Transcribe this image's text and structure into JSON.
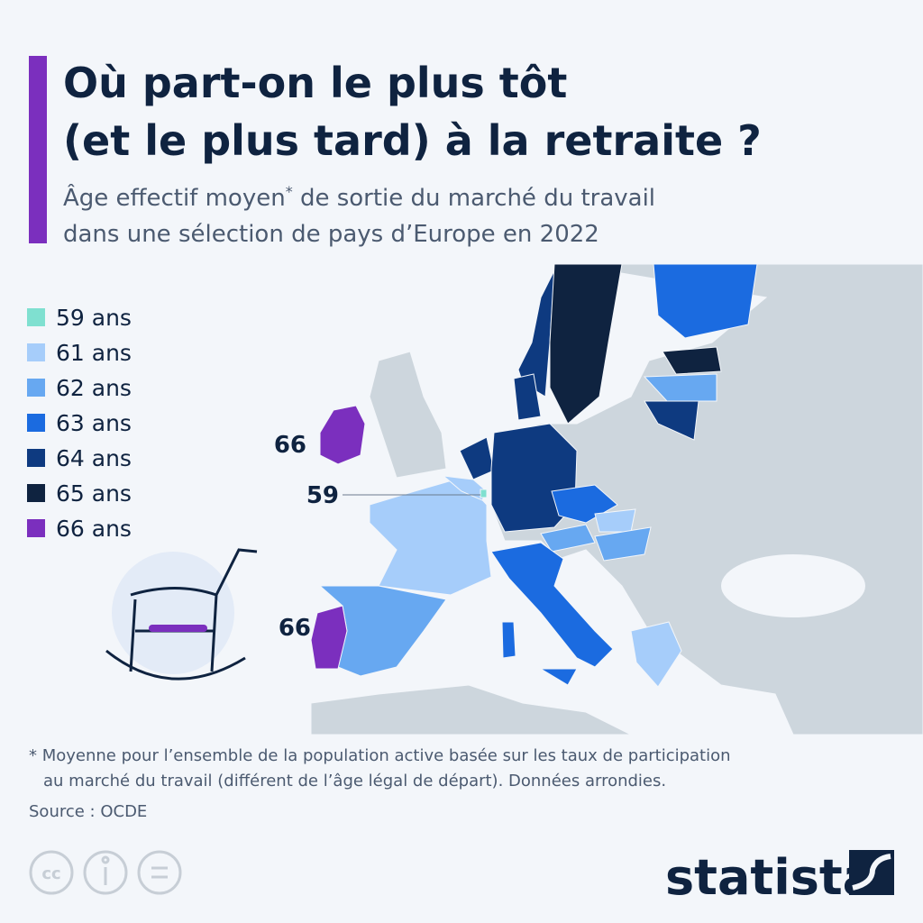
{
  "header": {
    "title": [
      "Où part-on le plus tôt",
      "(et le plus tard) à la retraite ?"
    ],
    "subtitle": [
      "Âge effectif moyen",
      "*",
      " de sortie du marché du travail",
      "dans une sélection de pays d’Europe en 2022"
    ]
  },
  "legend": {
    "items": [
      {
        "label": "59 ans",
        "color": "#7fe0d0"
      },
      {
        "label": "61 ans",
        "color": "#a6cdfa"
      },
      {
        "label": "62 ans",
        "color": "#67a8f1"
      },
      {
        "label": "63 ans",
        "color": "#1b6be0"
      },
      {
        "label": "64 ans",
        "color": "#0e3a80"
      },
      {
        "label": "65 ans",
        "color": "#0f2340"
      },
      {
        "label": "66 ans",
        "color": "#7b2fbe"
      }
    ]
  },
  "annotations": [
    "66",
    "59",
    "66"
  ],
  "footnote": [
    "* Moyenne pour l’ensemble de la population active basée sur les taux de participation",
    "au marché du travail (différent de l’âge légal de départ). Données arrondies."
  ],
  "source": "Source : OCDE",
  "license_icon": "cc",
  "brand": "statista"
}
